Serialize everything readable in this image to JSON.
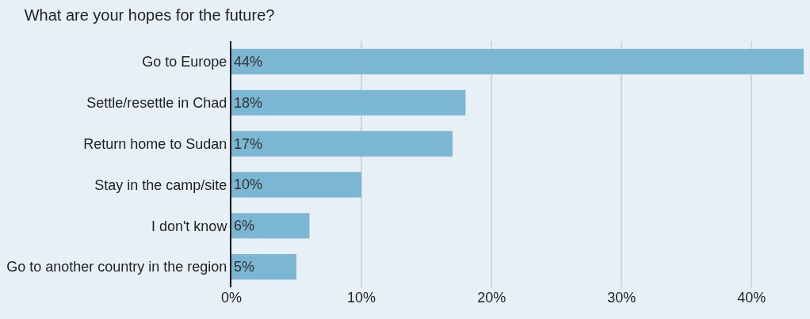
{
  "chart_data": {
    "type": "bar",
    "orientation": "horizontal",
    "title": "What are your hopes for the future?",
    "categories": [
      "Go to Europe",
      "Settle/resettle in Chad",
      "Return home to Sudan",
      "Stay in the camp/site",
      "I don't know",
      "Go to another country in the region"
    ],
    "values": [
      44,
      18,
      17,
      10,
      6,
      5
    ],
    "value_labels": [
      "44%",
      "18%",
      "17%",
      "10%",
      "6%",
      "5%"
    ],
    "color": "#7bb6d2",
    "xlim": [
      0,
      44
    ],
    "xticks": [
      {
        "value": 0,
        "label": "0%"
      },
      {
        "value": 10,
        "label": "10%"
      },
      {
        "value": 20,
        "label": "20%"
      },
      {
        "value": 30,
        "label": "30%"
      },
      {
        "value": 40,
        "label": "40%"
      }
    ],
    "grid": "x",
    "legend": false
  }
}
